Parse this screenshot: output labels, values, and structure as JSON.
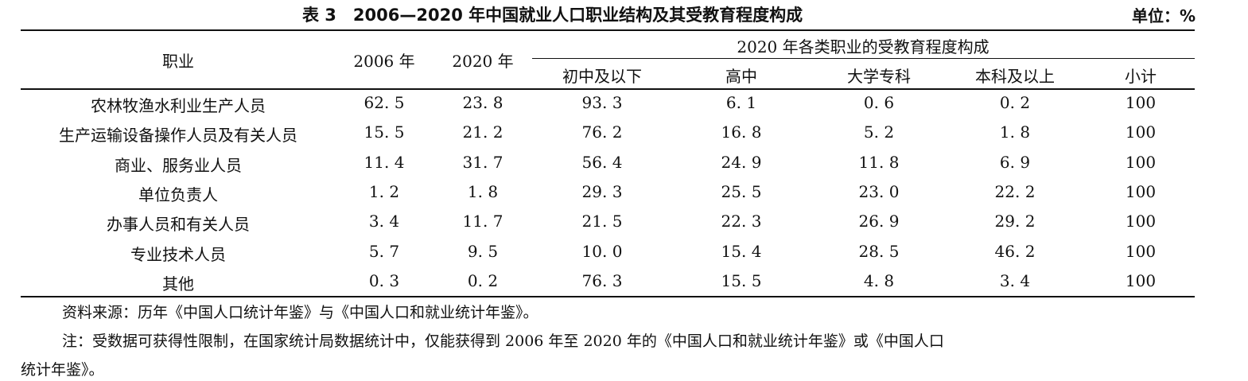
{
  "table": {
    "title": "表 3　2006—2020 年中国就业人口职业结构及其受教育程度构成",
    "unit": "单位：%",
    "headers": {
      "occupation": "职业",
      "year_2006": "2006 年",
      "year_2020": "2020 年",
      "group": "2020 年各类职业的受教育程度构成",
      "edu": [
        "初中及以下",
        "高中",
        "大学专科",
        "本科及以上",
        "小计"
      ]
    },
    "rows": [
      [
        "农林牧渔水利业生产人员",
        "62. 5",
        "23. 8",
        "93. 3",
        "6. 1",
        "0. 6",
        "0. 2",
        "100"
      ],
      [
        "生产运输设备操作人员及有关人员",
        "15. 5",
        "21. 2",
        "76. 2",
        "16. 8",
        "5. 2",
        "1. 8",
        "100"
      ],
      [
        "商业、服务业人员",
        "11. 4",
        "31. 7",
        "56. 4",
        "24. 9",
        "11. 8",
        "6. 9",
        "100"
      ],
      [
        "单位负责人",
        "1. 2",
        "1. 8",
        "29. 3",
        "25. 5",
        "23. 0",
        "22. 2",
        "100"
      ],
      [
        "办事人员和有关人员",
        "3. 4",
        "11. 7",
        "21. 5",
        "22. 3",
        "26. 9",
        "29. 2",
        "100"
      ],
      [
        "专业技术人员",
        "5. 7",
        "9. 5",
        "10. 0",
        "15. 4",
        "28. 5",
        "46. 2",
        "100"
      ],
      [
        "其他",
        "0. 3",
        "0. 2",
        "76. 3",
        "15. 5",
        "4. 8",
        "3. 4",
        "100"
      ]
    ]
  },
  "notes": {
    "source": "资料来源：历年《中国人口统计年鉴》与《中国人口和就业统计年鉴》。",
    "note_line1": "注：受数据可获得性限制，在国家统计局数据统计中，仅能获得到 2006 年至 2020 年的《中国人口和就业统计年鉴》或《中国人口",
    "note_line2": "统计年鉴》。"
  }
}
